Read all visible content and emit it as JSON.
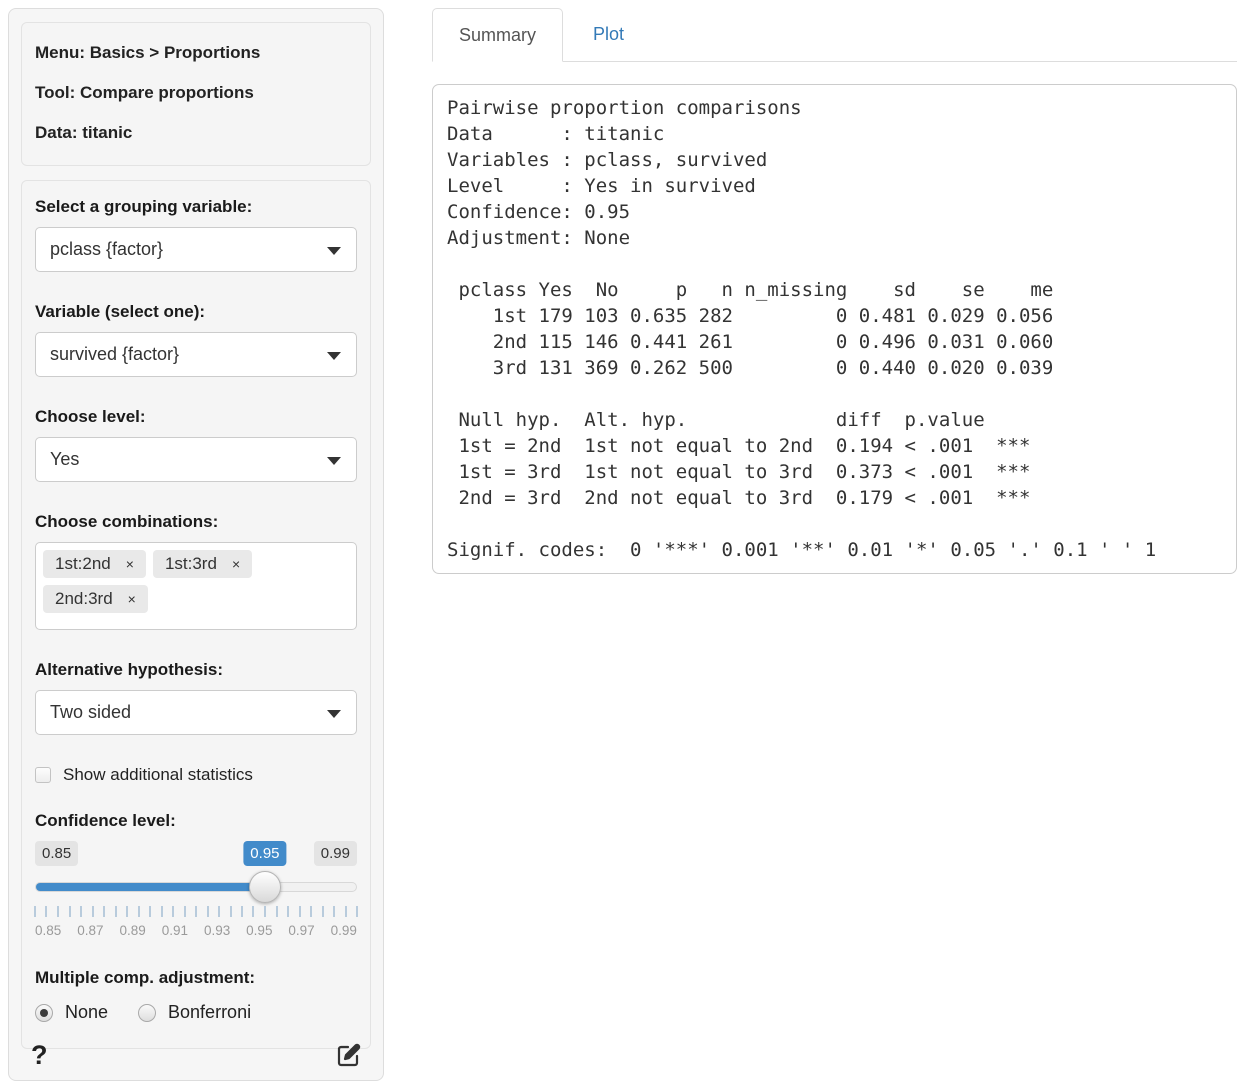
{
  "sidebar": {
    "info": {
      "menu": "Menu: Basics > Proportions",
      "tool": "Tool: Compare proportions",
      "data": "Data: titanic"
    },
    "grouping": {
      "label": "Select a grouping variable:",
      "value": "pclass {factor}"
    },
    "variable": {
      "label": "Variable (select one):",
      "value": "survived {factor}"
    },
    "level": {
      "label": "Choose level:",
      "value": "Yes"
    },
    "combinations": {
      "label": "Choose combinations:",
      "items": [
        "1st:2nd",
        "1st:3rd",
        "2nd:3rd"
      ],
      "remove_symbol": "×"
    },
    "alt_hyp": {
      "label": "Alternative hypothesis:",
      "value": "Two sided"
    },
    "show_stats": {
      "label": "Show additional statistics",
      "checked": false
    },
    "conf_level": {
      "label": "Confidence level:",
      "min": "0.85",
      "value": "0.95",
      "max": "0.99",
      "percent": 71.4,
      "tick_labels": [
        "0.85",
        "0.87",
        "0.89",
        "0.91",
        "0.93",
        "0.95",
        "0.97",
        "0.99"
      ],
      "minor_tick_count": 29
    },
    "adjustment": {
      "label": "Multiple comp. adjustment:",
      "options": [
        {
          "label": "None",
          "selected": true
        },
        {
          "label": "Bonferroni",
          "selected": false
        }
      ]
    },
    "help_label": "?"
  },
  "main": {
    "tabs": [
      {
        "label": "Summary",
        "active": true
      },
      {
        "label": "Plot",
        "active": false
      }
    ],
    "summary_text": "Pairwise proportion comparisons\nData      : titanic\nVariables : pclass, survived\nLevel     : Yes in survived\nConfidence: 0.95\nAdjustment: None\n\n pclass Yes  No     p   n n_missing    sd    se    me\n    1st 179 103 0.635 282         0 0.481 0.029 0.056\n    2nd 115 146 0.441 261         0 0.496 0.031 0.060\n    3rd 131 369 0.262 500         0 0.440 0.020 0.039\n\n Null hyp.  Alt. hyp.             diff  p.value\n 1st = 2nd  1st not equal to 2nd  0.194 < .001  ***\n 1st = 3rd  1st not equal to 3rd  0.373 < .001  ***\n 2nd = 3rd  2nd not equal to 3rd  0.179 < .001  ***\n\nSignif. codes:  0 '***' 0.001 '**' 0.01 '*' 0.05 '.' 0.1 ' ' 1"
  },
  "colors": {
    "accent_blue": "#428bca",
    "link_blue": "#337ab7"
  }
}
